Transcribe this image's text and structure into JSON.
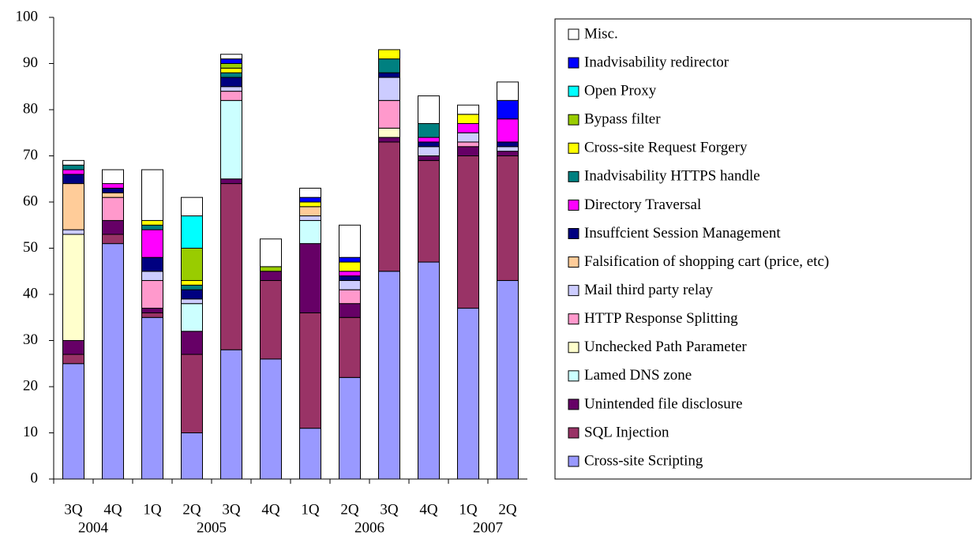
{
  "chart_data": {
    "type": "stacked_bar",
    "categories": [
      "3Q",
      "4Q",
      "1Q",
      "2Q",
      "3Q",
      "4Q",
      "1Q",
      "2Q",
      "3Q",
      "4Q",
      "1Q",
      "2Q"
    ],
    "groups": [
      {
        "label": "2004",
        "start": 0,
        "end": 1
      },
      {
        "label": "2005",
        "start": 2,
        "end": 5
      },
      {
        "label": "2006",
        "start": 6,
        "end": 9
      },
      {
        "label": "2007",
        "start": 10,
        "end": 11
      }
    ],
    "ylim": [
      0,
      100
    ],
    "yticks": [
      0,
      10,
      20,
      30,
      40,
      50,
      60,
      70,
      80,
      90,
      100
    ],
    "legend": "right",
    "series": [
      {
        "name": "Cross-site Scripting",
        "color": "#9999ff",
        "values": [
          25,
          51,
          35,
          10,
          28,
          26,
          11,
          22,
          45,
          47,
          37,
          43
        ]
      },
      {
        "name": "SQL Injection",
        "color": "#993366",
        "values": [
          2,
          2,
          1,
          17,
          36,
          17,
          25,
          13,
          28,
          22,
          33,
          27
        ]
      },
      {
        "name": "Unintended file disclosure",
        "color": "#660066",
        "values": [
          3,
          3,
          1,
          5,
          1,
          2,
          15,
          3,
          1,
          1,
          2,
          1
        ]
      },
      {
        "name": "Lamed DNS zone",
        "color": "#ccffff",
        "values": [
          0,
          0,
          0,
          6,
          17,
          0,
          5,
          0,
          0,
          0,
          0,
          0
        ]
      },
      {
        "name": "Unchecked Path Parameter",
        "color": "#ffffcc",
        "values": [
          23,
          0,
          0,
          0,
          0,
          0,
          0,
          0,
          2,
          0,
          0,
          0
        ]
      },
      {
        "name": "HTTP Response Splitting",
        "color": "#ff99cc",
        "values": [
          0,
          5,
          6,
          0,
          2,
          0,
          0,
          3,
          6,
          0,
          1,
          0
        ]
      },
      {
        "name": "Mail third party relay",
        "color": "#ccccff",
        "values": [
          1,
          0,
          2,
          1,
          1,
          0,
          1,
          2,
          5,
          2,
          2,
          1
        ]
      },
      {
        "name": "Falsification of shopping cart (price, etc)",
        "color": "#ffcc99",
        "values": [
          10,
          1,
          0,
          0,
          0,
          0,
          2,
          0,
          0,
          0,
          0,
          0
        ]
      },
      {
        "name": "Insuffcient Session Management",
        "color": "#000080",
        "values": [
          2,
          1,
          3,
          2,
          2,
          0,
          0,
          1,
          1,
          1,
          0,
          1
        ]
      },
      {
        "name": "Directory Traversal",
        "color": "#ff00ff",
        "values": [
          1,
          1,
          6,
          0,
          0,
          0,
          0,
          1,
          0,
          1,
          2,
          5
        ]
      },
      {
        "name": "Inadvisability HTTPS handle",
        "color": "#008080",
        "values": [
          1,
          0,
          1,
          1,
          1,
          0,
          0,
          0,
          3,
          3,
          0,
          0
        ]
      },
      {
        "name": "Cross-site Request Forgery",
        "color": "#ffff00",
        "values": [
          0,
          0,
          1,
          1,
          1,
          0,
          1,
          2,
          2,
          0,
          2,
          0
        ]
      },
      {
        "name": "Bypass filter",
        "color": "#99cc00",
        "values": [
          0,
          0,
          0,
          7,
          1,
          1,
          0,
          0,
          0,
          0,
          0,
          0
        ]
      },
      {
        "name": "Open Proxy",
        "color": "#00ffff",
        "values": [
          0,
          0,
          0,
          7,
          0,
          0,
          0,
          0,
          0,
          0,
          0,
          0
        ]
      },
      {
        "name": "Inadvisability redirector",
        "color": "#0000ff",
        "values": [
          0,
          0,
          0,
          0,
          1,
          0,
          1,
          1,
          0,
          0,
          0,
          4
        ]
      },
      {
        "name": "Misc.",
        "color": "#ffffff",
        "values": [
          1,
          3,
          11,
          4,
          1,
          6,
          2,
          7,
          0,
          6,
          2,
          4
        ]
      }
    ]
  }
}
